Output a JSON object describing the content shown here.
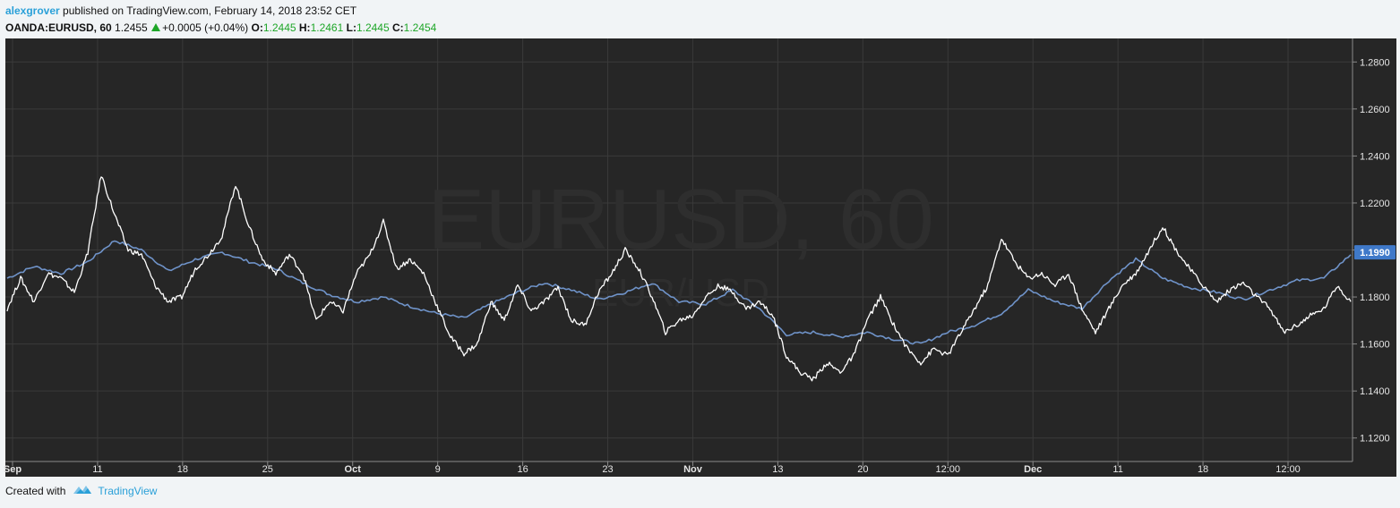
{
  "header": {
    "author": "alexgrover",
    "published_text": "published on TradingView.com, February 14, 2018 23:52 CET",
    "symbol": "OANDA:EURUSD, 60",
    "last": "1.2455",
    "change": "+0.0005 (+0.04%)",
    "o_label": "O:",
    "o_value": "1.2445",
    "h_label": "H:",
    "h_value": "1.2461",
    "l_label": "L:",
    "l_value": "1.2445",
    "c_label": "C:",
    "c_value": "1.2454"
  },
  "watermark": {
    "line1": "EURUSD, 60",
    "line2": "EUR/USD"
  },
  "footer": {
    "created_with": "Created with",
    "brand": "TradingView"
  },
  "colors": {
    "background": "#262626",
    "grid": "#3a3a3a",
    "white_line": "#ffffff",
    "blue_line": "#6f93c9",
    "price_label_bg": "#3f79c9",
    "up_green": "#1ea628",
    "brand": "#2aa0d8"
  },
  "chart_data": {
    "type": "line",
    "ylim": [
      1.11,
      1.29
    ],
    "ytick_labels": [
      "1.2800",
      "1.2600",
      "1.2400",
      "1.2200",
      "1.2000",
      "1.1800",
      "1.1600",
      "1.1400",
      "1.1200"
    ],
    "ytick_values": [
      1.28,
      1.26,
      1.24,
      1.22,
      1.2,
      1.18,
      1.16,
      1.14,
      1.12
    ],
    "x_tick_labels": [
      "Sep",
      "11",
      "18",
      "25",
      "Oct",
      "9",
      "16",
      "23",
      "Nov",
      "13",
      "20",
      "12:00",
      "Dec",
      "11",
      "18",
      "12:00"
    ],
    "last_price_label": "1.1990",
    "last_price_value": 1.199,
    "x_index_range": [
      0,
      100
    ],
    "series": [
      {
        "color": "#6f93c9",
        "x": [
          0,
          2,
          4,
          6,
          8,
          10,
          12,
          14,
          16,
          18,
          20,
          22,
          24,
          26,
          28,
          30,
          32,
          34,
          36,
          38,
          40,
          42,
          44,
          46,
          48,
          50,
          52,
          54,
          56,
          58,
          60,
          62,
          64,
          66,
          68,
          70,
          72,
          74,
          76,
          78,
          80,
          82,
          84,
          86,
          88,
          90,
          92,
          94,
          96,
          98,
          100
        ],
        "values": [
          1.188,
          1.193,
          1.19,
          1.195,
          1.204,
          1.2,
          1.191,
          1.196,
          1.199,
          1.195,
          1.192,
          1.186,
          1.181,
          1.178,
          1.18,
          1.176,
          1.173,
          1.171,
          1.177,
          1.182,
          1.186,
          1.183,
          1.179,
          1.182,
          1.186,
          1.178,
          1.177,
          1.183,
          1.175,
          1.164,
          1.165,
          1.163,
          1.165,
          1.162,
          1.16,
          1.165,
          1.168,
          1.173,
          1.183,
          1.178,
          1.175,
          1.187,
          1.196,
          1.188,
          1.184,
          1.182,
          1.179,
          1.183,
          1.187,
          1.188,
          1.198
        ]
      },
      {
        "color": "#ffffff",
        "x": [
          0,
          1,
          2,
          3,
          4,
          5,
          6,
          7,
          8,
          9,
          10,
          11,
          12,
          13,
          14,
          15,
          16,
          17,
          18,
          19,
          20,
          21,
          22,
          23,
          24,
          25,
          26,
          27,
          28,
          29,
          30,
          31,
          32,
          33,
          34,
          35,
          36,
          37,
          38,
          39,
          40,
          41,
          42,
          43,
          44,
          45,
          46,
          47,
          48,
          49,
          50,
          51,
          52,
          53,
          54,
          55,
          56,
          57,
          58,
          59,
          60,
          61,
          62,
          63,
          64,
          65,
          66,
          67,
          68,
          69,
          70,
          71,
          72,
          73,
          74,
          75,
          76,
          77,
          78,
          79,
          80,
          81,
          82,
          83,
          84,
          85,
          86,
          87,
          88,
          89,
          90,
          91,
          92,
          93,
          94,
          95,
          96,
          97,
          98,
          99,
          100
        ],
        "values": [
          1.175,
          1.188,
          1.178,
          1.19,
          1.188,
          1.182,
          1.199,
          1.232,
          1.215,
          1.2,
          1.198,
          1.185,
          1.178,
          1.18,
          1.192,
          1.198,
          1.206,
          1.228,
          1.21,
          1.196,
          1.19,
          1.198,
          1.19,
          1.17,
          1.178,
          1.174,
          1.19,
          1.198,
          1.212,
          1.192,
          1.196,
          1.19,
          1.176,
          1.163,
          1.156,
          1.16,
          1.178,
          1.17,
          1.185,
          1.174,
          1.178,
          1.184,
          1.17,
          1.168,
          1.182,
          1.19,
          1.2,
          1.192,
          1.18,
          1.165,
          1.17,
          1.172,
          1.18,
          1.185,
          1.182,
          1.175,
          1.178,
          1.172,
          1.155,
          1.148,
          1.145,
          1.152,
          1.148,
          1.155,
          1.17,
          1.18,
          1.168,
          1.158,
          1.152,
          1.158,
          1.155,
          1.165,
          1.175,
          1.185,
          1.205,
          1.195,
          1.188,
          1.19,
          1.185,
          1.19,
          1.175,
          1.165,
          1.175,
          1.185,
          1.19,
          1.2,
          1.21,
          1.2,
          1.192,
          1.185,
          1.178,
          1.183,
          1.186,
          1.18,
          1.175,
          1.165,
          1.168,
          1.172,
          1.175,
          1.185,
          1.178
        ]
      }
    ]
  }
}
